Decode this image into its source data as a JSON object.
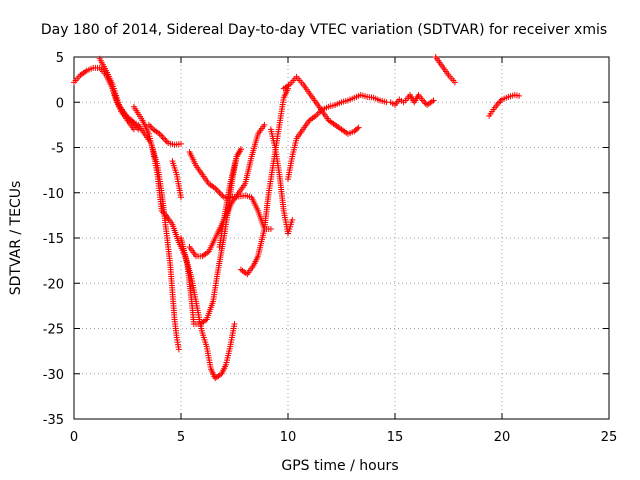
{
  "chart_data": {
    "type": "scatter",
    "title": "Day 180 of 2014, Sidereal Day-to-day VTEC variation (SDTVAR) for receiver xmis",
    "xlabel": "GPS time / hours",
    "ylabel": "SDTVAR / TECUs",
    "xlim": [
      0,
      25
    ],
    "ylim": [
      -35,
      5
    ],
    "xticks": [
      "0",
      "5",
      "10",
      "15",
      "20",
      "25"
    ],
    "yticks": [
      "5",
      "0",
      "-5",
      "-10",
      "-15",
      "-20",
      "-25",
      "-30",
      "-35"
    ],
    "grid": true,
    "marker": "+",
    "color": "#ff0000",
    "series": [
      {
        "points": [
          [
            0.0,
            2.2
          ],
          [
            0.3,
            3.0
          ],
          [
            0.6,
            3.5
          ],
          [
            0.9,
            3.8
          ],
          [
            1.2,
            3.8
          ],
          [
            1.5,
            3.0
          ],
          [
            1.8,
            1.5
          ],
          [
            2.1,
            -0.5
          ],
          [
            2.4,
            -1.5
          ],
          [
            2.7,
            -2.0
          ],
          [
            3.0,
            -3.0
          ]
        ]
      },
      {
        "points": [
          [
            1.2,
            4.8
          ],
          [
            1.5,
            3.5
          ],
          [
            1.8,
            2.0
          ],
          [
            2.0,
            0.5
          ],
          [
            2.2,
            -1.0
          ],
          [
            2.5,
            -2.0
          ],
          [
            2.8,
            -3.0
          ]
        ]
      },
      {
        "points": [
          [
            1.8,
            1.5
          ],
          [
            2.0,
            0.0
          ],
          [
            2.3,
            -1.0
          ],
          [
            2.6,
            -2.0
          ],
          [
            3.0,
            -2.5
          ],
          [
            3.3,
            -3.5
          ],
          [
            3.6,
            -4.5
          ],
          [
            3.9,
            -7.0
          ],
          [
            4.1,
            -10.0
          ],
          [
            4.3,
            -14.0
          ],
          [
            4.4,
            -16.0
          ],
          [
            4.5,
            -18.0
          ],
          [
            4.6,
            -21.0
          ],
          [
            4.7,
            -24.0
          ],
          [
            4.8,
            -26.0
          ],
          [
            4.9,
            -27.3
          ]
        ]
      },
      {
        "points": [
          [
            2.8,
            -0.5
          ],
          [
            3.2,
            -2.0
          ],
          [
            3.5,
            -3.5
          ],
          [
            3.7,
            -5.5
          ],
          [
            3.9,
            -8.0
          ],
          [
            4.0,
            -10.0
          ],
          [
            4.1,
            -12.0
          ],
          [
            4.3,
            -12.5
          ],
          [
            4.6,
            -13.5
          ],
          [
            4.9,
            -15.5
          ],
          [
            5.2,
            -17.0
          ],
          [
            5.5,
            -19.5
          ],
          [
            5.7,
            -22.0
          ],
          [
            5.9,
            -24.5
          ],
          [
            6.0,
            -25.5
          ],
          [
            6.2,
            -27.0
          ],
          [
            6.4,
            -29.5
          ],
          [
            6.6,
            -30.5
          ],
          [
            6.9,
            -30.0
          ],
          [
            7.1,
            -29.0
          ],
          [
            7.3,
            -27.0
          ],
          [
            7.5,
            -24.5
          ]
        ]
      },
      {
        "points": [
          [
            3.5,
            -2.5
          ],
          [
            3.7,
            -3.0
          ],
          [
            4.0,
            -3.5
          ],
          [
            4.2,
            -4.0
          ],
          [
            4.4,
            -4.5
          ],
          [
            4.7,
            -4.7
          ],
          [
            5.0,
            -4.6
          ]
        ]
      },
      {
        "points": [
          [
            4.6,
            -6.5
          ],
          [
            4.8,
            -8.0
          ],
          [
            5.0,
            -10.5
          ]
        ]
      },
      {
        "points": [
          [
            5.0,
            -15.0
          ],
          [
            5.3,
            -18.0
          ],
          [
            5.5,
            -22.0
          ],
          [
            5.6,
            -24.5
          ],
          [
            5.9,
            -24.5
          ],
          [
            6.2,
            -24.0
          ],
          [
            6.5,
            -22.0
          ],
          [
            6.7,
            -19.0
          ],
          [
            7.0,
            -15.0
          ],
          [
            7.2,
            -12.0
          ],
          [
            7.4,
            -8.5
          ],
          [
            7.6,
            -6.0
          ],
          [
            7.8,
            -5.2
          ]
        ]
      },
      {
        "points": [
          [
            5.4,
            -5.5
          ],
          [
            5.7,
            -7.0
          ],
          [
            6.0,
            -8.0
          ],
          [
            6.3,
            -9.0
          ],
          [
            6.6,
            -9.5
          ],
          [
            7.0,
            -10.5
          ],
          [
            7.5,
            -10.5
          ],
          [
            8.0,
            -10.3
          ],
          [
            8.3,
            -10.5
          ],
          [
            8.6,
            -12.0
          ],
          [
            8.9,
            -14.0
          ],
          [
            9.2,
            -14.0
          ]
        ]
      },
      {
        "points": [
          [
            5.4,
            -16.0
          ],
          [
            5.7,
            -17.0
          ],
          [
            6.0,
            -17.0
          ],
          [
            6.3,
            -16.5
          ],
          [
            6.6,
            -15.0
          ],
          [
            7.0,
            -13.0
          ],
          [
            7.4,
            -11.0
          ],
          [
            7.7,
            -10.0
          ],
          [
            8.0,
            -9.0
          ],
          [
            8.3,
            -6.0
          ],
          [
            8.6,
            -3.5
          ],
          [
            8.9,
            -2.5
          ]
        ]
      },
      {
        "points": [
          [
            6.8,
            -16.0
          ],
          [
            7.0,
            -13.0
          ],
          [
            7.3,
            -9.0
          ],
          [
            7.6,
            -6.0
          ],
          [
            7.8,
            -5.2
          ]
        ]
      },
      {
        "points": [
          [
            7.8,
            -18.5
          ],
          [
            8.1,
            -19.0
          ],
          [
            8.4,
            -18.0
          ],
          [
            8.6,
            -17.0
          ],
          [
            8.9,
            -14.0
          ],
          [
            9.1,
            -10.0
          ],
          [
            9.3,
            -7.0
          ],
          [
            9.5,
            -4.0
          ],
          [
            9.7,
            -1.0
          ],
          [
            9.8,
            0.5
          ],
          [
            10.0,
            1.5
          ]
        ]
      },
      {
        "points": [
          [
            9.2,
            -3.0
          ],
          [
            9.4,
            -5.0
          ],
          [
            9.6,
            -8.0
          ],
          [
            9.8,
            -12.0
          ],
          [
            10.0,
            -14.5
          ],
          [
            10.2,
            -13.0
          ]
        ]
      },
      {
        "points": [
          [
            9.8,
            1.5
          ],
          [
            10.1,
            2.0
          ],
          [
            10.4,
            2.8
          ],
          [
            10.7,
            2.0
          ],
          [
            11.0,
            1.0
          ],
          [
            11.3,
            0.0
          ],
          [
            11.6,
            -1.0
          ],
          [
            11.9,
            -2.0
          ],
          [
            12.2,
            -2.5
          ],
          [
            12.5,
            -3.0
          ],
          [
            12.8,
            -3.5
          ],
          [
            13.1,
            -3.2
          ],
          [
            13.3,
            -2.8
          ]
        ]
      },
      {
        "points": [
          [
            10.0,
            -8.5
          ],
          [
            10.2,
            -6.0
          ],
          [
            10.4,
            -4.0
          ],
          [
            10.7,
            -3.0
          ],
          [
            11.0,
            -2.0
          ],
          [
            11.3,
            -1.5
          ],
          [
            11.6,
            -0.8
          ],
          [
            11.9,
            -0.5
          ],
          [
            12.2,
            -0.3
          ],
          [
            12.5,
            0.0
          ],
          [
            12.8,
            0.2
          ],
          [
            13.1,
            0.5
          ],
          [
            13.4,
            0.8
          ],
          [
            13.7,
            0.6
          ],
          [
            14.0,
            0.5
          ],
          [
            14.3,
            0.2
          ],
          [
            14.6,
            0.0
          ]
        ]
      },
      {
        "points": [
          [
            14.8,
            0.0
          ],
          [
            15.0,
            -0.3
          ],
          [
            15.2,
            0.3
          ],
          [
            15.4,
            0.0
          ]
        ]
      },
      {
        "points": [
          [
            15.5,
            0.2
          ],
          [
            15.7,
            0.8
          ],
          [
            15.9,
            0.0
          ],
          [
            16.1,
            0.8
          ],
          [
            16.3,
            0.2
          ],
          [
            16.5,
            -0.3
          ],
          [
            16.8,
            0.2
          ]
        ]
      },
      {
        "points": [
          [
            16.9,
            5.0
          ],
          [
            17.2,
            4.0
          ],
          [
            17.5,
            3.0
          ],
          [
            17.8,
            2.2
          ]
        ]
      },
      {
        "points": [
          [
            19.4,
            -1.5
          ],
          [
            19.6,
            -0.8
          ],
          [
            19.8,
            -0.2
          ],
          [
            20.0,
            0.3
          ],
          [
            20.3,
            0.6
          ],
          [
            20.6,
            0.8
          ],
          [
            20.8,
            0.7
          ]
        ]
      }
    ]
  }
}
